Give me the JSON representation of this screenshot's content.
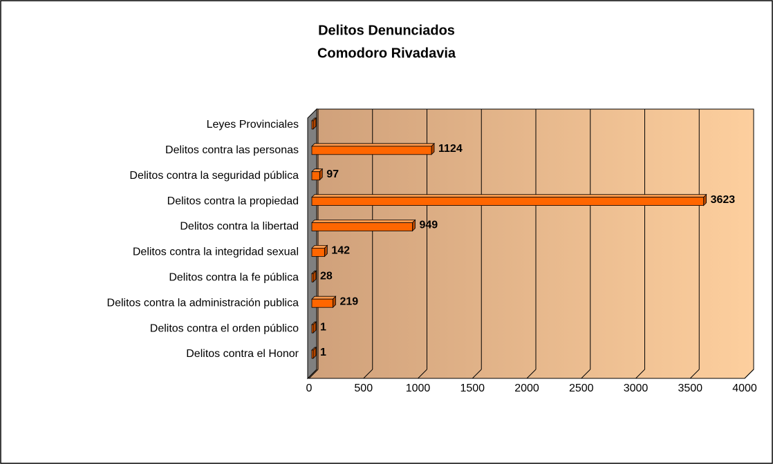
{
  "chart_data": {
    "type": "bar",
    "orientation": "horizontal",
    "title": "Delitos Denunciados",
    "subtitle": "Comodoro Rivadavia",
    "categories": [
      "Delitos contra el Honor",
      "Delitos contra el orden público",
      "Delitos contra la administración publica",
      "Delitos contra la fe pública",
      "Delitos contra la integridad sexual",
      "Delitos contra la libertad",
      "Delitos contra la propiedad",
      "Delitos contra la seguridad pública",
      "Delitos contra las personas",
      "Leyes Provinciales"
    ],
    "values": [
      1,
      1,
      219,
      28,
      142,
      949,
      3623,
      97,
      1124,
      3
    ],
    "value_labels": [
      "1",
      "1",
      "219",
      "28",
      "142",
      "949",
      "3623",
      "97",
      "1124",
      null
    ],
    "color": "#ff6600",
    "xlim": [
      0,
      4000
    ],
    "xticks": [
      0,
      500,
      1000,
      1500,
      2000,
      2500,
      3000,
      3500,
      4000
    ],
    "grid": true
  }
}
